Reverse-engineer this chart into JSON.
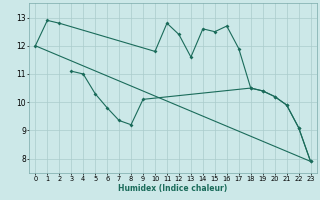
{
  "bg_color": "#cce8e8",
  "grid_color": "#aacccc",
  "line_color": "#1a6b5a",
  "xlabel": "Humidex (Indice chaleur)",
  "ylim": [
    7.5,
    13.5
  ],
  "xlim": [
    -0.5,
    23.5
  ],
  "yticks": [
    8,
    9,
    10,
    11,
    12,
    13
  ],
  "xticks": [
    0,
    1,
    2,
    3,
    4,
    5,
    6,
    7,
    8,
    9,
    10,
    11,
    12,
    13,
    14,
    15,
    16,
    17,
    18,
    19,
    20,
    21,
    22,
    23
  ],
  "curve1_x": [
    0,
    1,
    2,
    10,
    11,
    12,
    13,
    14,
    15,
    16,
    17,
    18,
    19,
    20,
    21,
    22,
    23
  ],
  "curve1_y": [
    12.0,
    12.9,
    12.8,
    11.8,
    12.8,
    12.4,
    11.6,
    12.6,
    12.5,
    12.7,
    11.9,
    10.5,
    10.4,
    10.2,
    9.9,
    9.1,
    7.9
  ],
  "curve2_x": [
    3,
    4,
    5,
    6,
    7,
    8,
    9,
    18,
    19,
    20,
    21,
    22,
    23
  ],
  "curve2_y": [
    11.1,
    11.0,
    10.3,
    9.8,
    9.35,
    9.2,
    10.1,
    10.5,
    10.4,
    10.2,
    9.9,
    9.1,
    7.9
  ],
  "trend_x": [
    0,
    23
  ],
  "trend_y": [
    12.0,
    7.9
  ]
}
